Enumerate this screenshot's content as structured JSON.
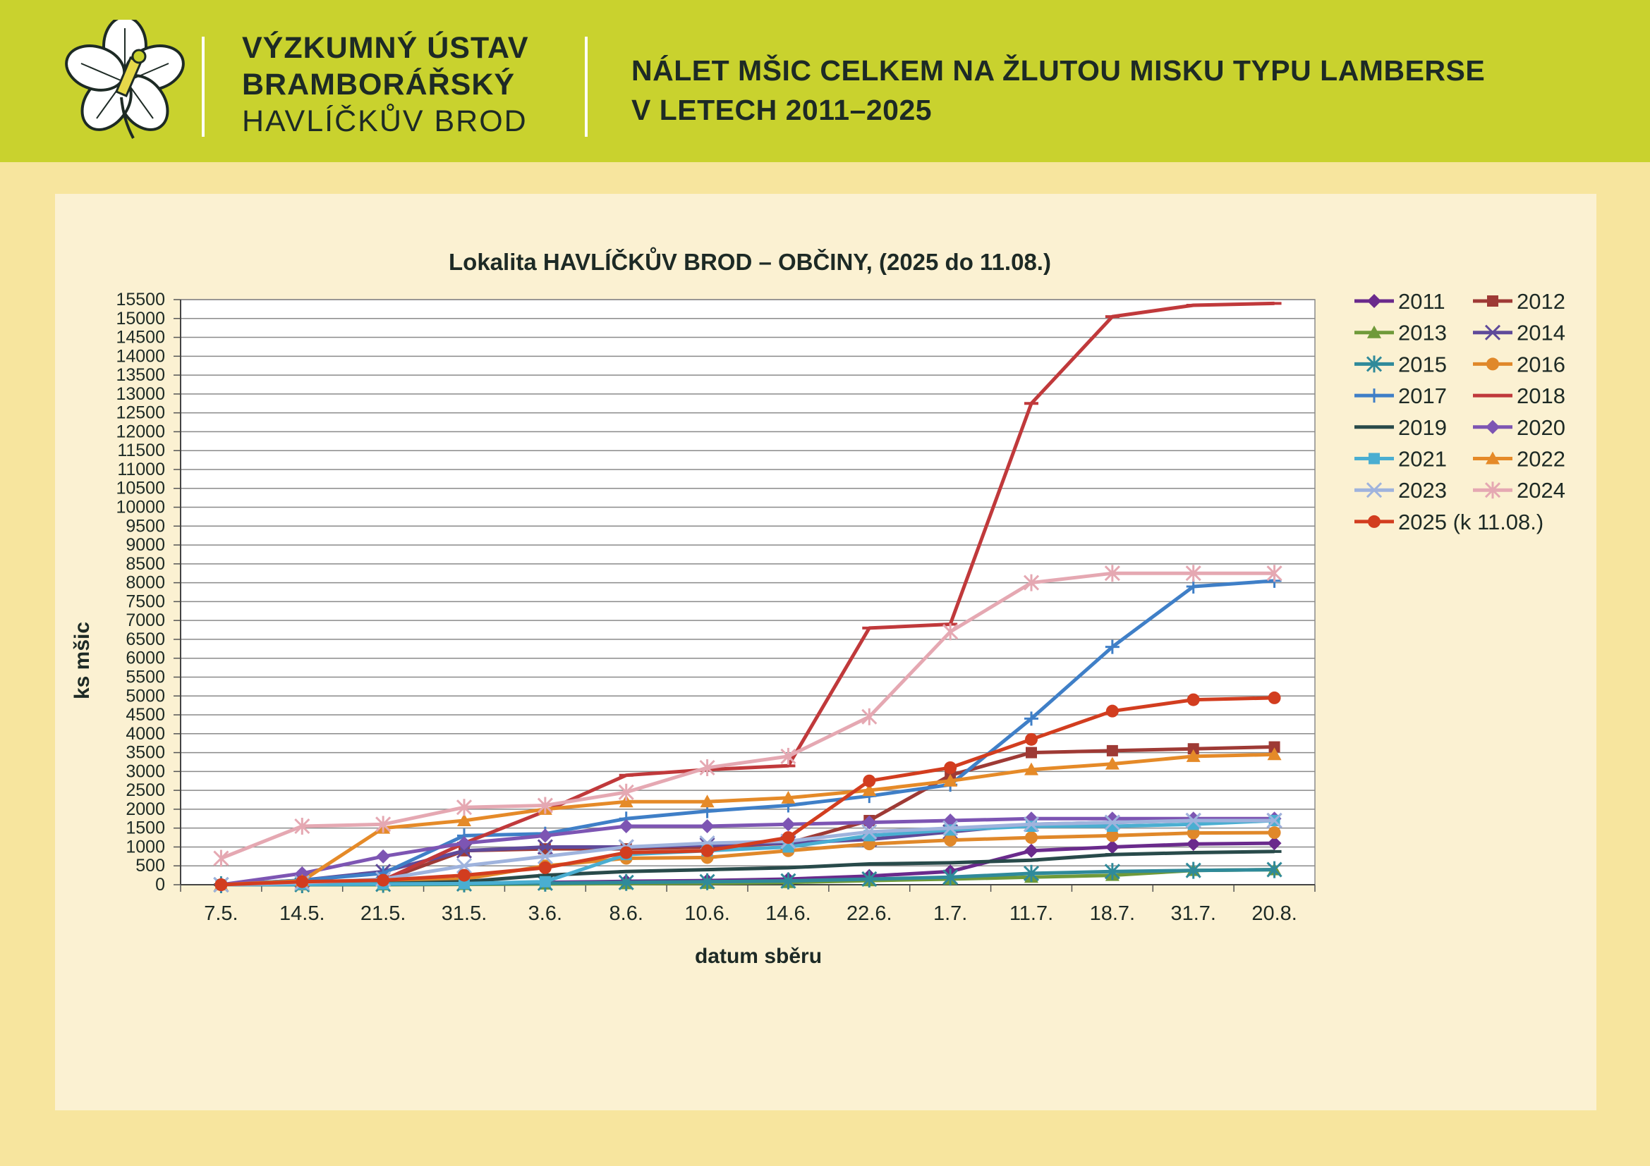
{
  "header": {
    "institute_line1": "VÝZKUMNÝ ÚSTAV",
    "institute_line2": "BRAMBORÁŘSKÝ",
    "institute_line3": "HAVLÍČKŮV BROD",
    "title_line1": "NÁLET MŠIC CELKEM NA ŽLUTOU MISKU TYPU LAMBERSE",
    "title_line2": "V LETECH 2011–2025"
  },
  "chart_data": {
    "type": "line",
    "title": "Lokalita HAVLÍČKŮV BROD – OBČINY, (2025 do 11.08.)",
    "xlabel": "datum sběru",
    "ylabel": "ks mšic",
    "ylim": [
      0,
      15500
    ],
    "ytick_step": 500,
    "grid": "horizontal",
    "legend_position": "right",
    "categories": [
      "7.5.",
      "14.5.",
      "21.5.",
      "31.5.",
      "3.6.",
      "8.6.",
      "10.6.",
      "14.6.",
      "22.6.",
      "1.7.",
      "11.7.",
      "18.7.",
      "31.7.",
      "20.8."
    ],
    "series": [
      {
        "name": "2011",
        "color": "#6a2a8c",
        "marker": "diamond",
        "values": [
          0,
          10,
          20,
          30,
          60,
          90,
          110,
          150,
          230,
          350,
          900,
          1000,
          1080,
          1100
        ]
      },
      {
        "name": "2012",
        "color": "#9e3a35",
        "marker": "square",
        "values": [
          0,
          30,
          120,
          900,
          950,
          950,
          1000,
          1100,
          1700,
          2900,
          3500,
          3550,
          3600,
          3650
        ]
      },
      {
        "name": "2013",
        "color": "#6f9a3a",
        "marker": "triangle",
        "values": [
          0,
          0,
          0,
          10,
          20,
          30,
          40,
          60,
          110,
          150,
          200,
          250,
          380,
          400
        ]
      },
      {
        "name": "2014",
        "color": "#5f4a9a",
        "marker": "x",
        "values": [
          0,
          120,
          350,
          900,
          1000,
          1000,
          1050,
          1100,
          1200,
          1400,
          1600,
          1650,
          1700,
          1700
        ]
      },
      {
        "name": "2015",
        "color": "#2f8a9a",
        "marker": "asterisk",
        "values": [
          0,
          0,
          10,
          20,
          40,
          60,
          80,
          100,
          150,
          200,
          300,
          350,
          380,
          400
        ]
      },
      {
        "name": "2016",
        "color": "#e0882a",
        "marker": "circle",
        "values": [
          0,
          20,
          80,
          150,
          500,
          700,
          720,
          900,
          1080,
          1180,
          1250,
          1300,
          1370,
          1380
        ]
      },
      {
        "name": "2017",
        "color": "#3f7fc7",
        "marker": "plus",
        "values": [
          0,
          120,
          300,
          1300,
          1350,
          1750,
          1950,
          2100,
          2350,
          2650,
          4400,
          6300,
          7900,
          8050
        ]
      },
      {
        "name": "2018",
        "color": "#c0393b",
        "marker": "dash",
        "values": [
          0,
          60,
          120,
          1100,
          1950,
          2900,
          3050,
          3150,
          6800,
          6900,
          12750,
          15050,
          15350,
          15400
        ]
      },
      {
        "name": "2019",
        "color": "#284a4a",
        "marker": "dash",
        "values": [
          0,
          10,
          30,
          80,
          250,
          350,
          400,
          450,
          550,
          580,
          650,
          800,
          850,
          880
        ]
      },
      {
        "name": "2020",
        "color": "#7d55b3",
        "marker": "diamond",
        "values": [
          0,
          300,
          750,
          1100,
          1300,
          1550,
          1550,
          1600,
          1650,
          1700,
          1750,
          1750,
          1750,
          1750
        ]
      },
      {
        "name": "2021",
        "color": "#4aaed1",
        "marker": "square",
        "values": [
          0,
          10,
          20,
          30,
          80,
          800,
          900,
          1000,
          1300,
          1450,
          1550,
          1550,
          1600,
          1700
        ]
      },
      {
        "name": "2022",
        "color": "#e58a28",
        "marker": "triangle",
        "values": [
          0,
          100,
          1500,
          1700,
          2000,
          2200,
          2200,
          2300,
          2500,
          2750,
          3050,
          3200,
          3400,
          3450
        ]
      },
      {
        "name": "2023",
        "color": "#9fb3dd",
        "marker": "x",
        "values": [
          0,
          50,
          150,
          500,
          750,
          1000,
          1100,
          1150,
          1400,
          1500,
          1600,
          1650,
          1700,
          1700
        ]
      },
      {
        "name": "2024",
        "color": "#e5a8b2",
        "marker": "asterisk",
        "values": [
          700,
          1550,
          1600,
          2050,
          2100,
          2450,
          3100,
          3400,
          4450,
          6700,
          8000,
          8250,
          8250,
          8250
        ]
      },
      {
        "name": "2025 (k 11.08.)",
        "color": "#d23d1f",
        "marker": "circle",
        "values": [
          0,
          80,
          120,
          250,
          450,
          850,
          900,
          1250,
          2750,
          3100,
          3850,
          4600,
          4900,
          4950
        ]
      }
    ]
  },
  "colors": {
    "header_bg": "#c9d22e",
    "page_bg": "#f7e59e",
    "panel_bg": "#fbf1d2",
    "plot_bg": "#ffffff",
    "grid": "#8a8a8a",
    "text": "#1d2a25"
  }
}
